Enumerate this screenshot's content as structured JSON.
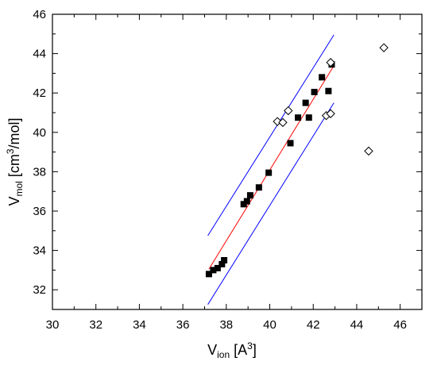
{
  "chart_data": {
    "type": "scatter",
    "title": "",
    "xlabel": {
      "main": "V",
      "subscript": "ion",
      "unit_pre": " [A",
      "unit_sup": "3",
      "unit_post": "]"
    },
    "ylabel": {
      "main": "V",
      "subscript": "mol",
      "unit_pre": " [cm",
      "unit_sup": "3",
      "unit_post": "/mol]"
    },
    "xlim": [
      30,
      47
    ],
    "ylim": [
      31,
      46
    ],
    "x_ticks": [
      30,
      32,
      34,
      36,
      38,
      40,
      42,
      44,
      46
    ],
    "y_ticks": [
      32,
      34,
      36,
      38,
      40,
      42,
      44,
      46
    ],
    "x_tick_labels": [
      "30",
      "32",
      "34",
      "36",
      "38",
      "40",
      "42",
      "44",
      "46"
    ],
    "y_tick_labels": [
      "32",
      "34",
      "36",
      "38",
      "40",
      "42",
      "44",
      "46"
    ],
    "grid": false,
    "series": [
      {
        "marker": "filled-square",
        "color": "#000000",
        "points": [
          [
            37.2,
            32.8
          ],
          [
            37.4,
            33.0
          ],
          [
            37.6,
            33.1
          ],
          [
            37.8,
            33.3
          ],
          [
            37.9,
            33.5
          ],
          [
            38.8,
            36.35
          ],
          [
            38.95,
            36.5
          ],
          [
            39.1,
            36.8
          ],
          [
            39.5,
            37.2
          ],
          [
            39.95,
            37.95
          ],
          [
            40.95,
            39.45
          ],
          [
            41.3,
            40.75
          ],
          [
            41.65,
            41.5
          ],
          [
            41.8,
            40.75
          ],
          [
            42.05,
            42.05
          ],
          [
            42.4,
            42.8
          ],
          [
            42.7,
            42.1
          ],
          [
            42.85,
            43.45
          ]
        ]
      },
      {
        "marker": "open-diamond",
        "color": "#000000",
        "points": [
          [
            40.35,
            40.55
          ],
          [
            40.6,
            40.5
          ],
          [
            40.85,
            41.1
          ],
          [
            42.6,
            40.85
          ],
          [
            42.8,
            40.95
          ],
          [
            42.8,
            43.55
          ],
          [
            44.55,
            39.05
          ],
          [
            45.25,
            44.3
          ]
        ]
      }
    ],
    "lines": [
      {
        "role": "fit",
        "color": "#ff0000",
        "from": [
          37.2,
          33.05
        ],
        "to": [
          42.9,
          43.3
        ]
      },
      {
        "role": "upper-bound",
        "color": "#0000ff",
        "from": [
          37.15,
          34.75
        ],
        "to": [
          42.95,
          44.95
        ]
      },
      {
        "role": "lower-bound",
        "color": "#0000ff",
        "from": [
          37.15,
          31.25
        ],
        "to": [
          42.95,
          41.5
        ]
      }
    ]
  }
}
